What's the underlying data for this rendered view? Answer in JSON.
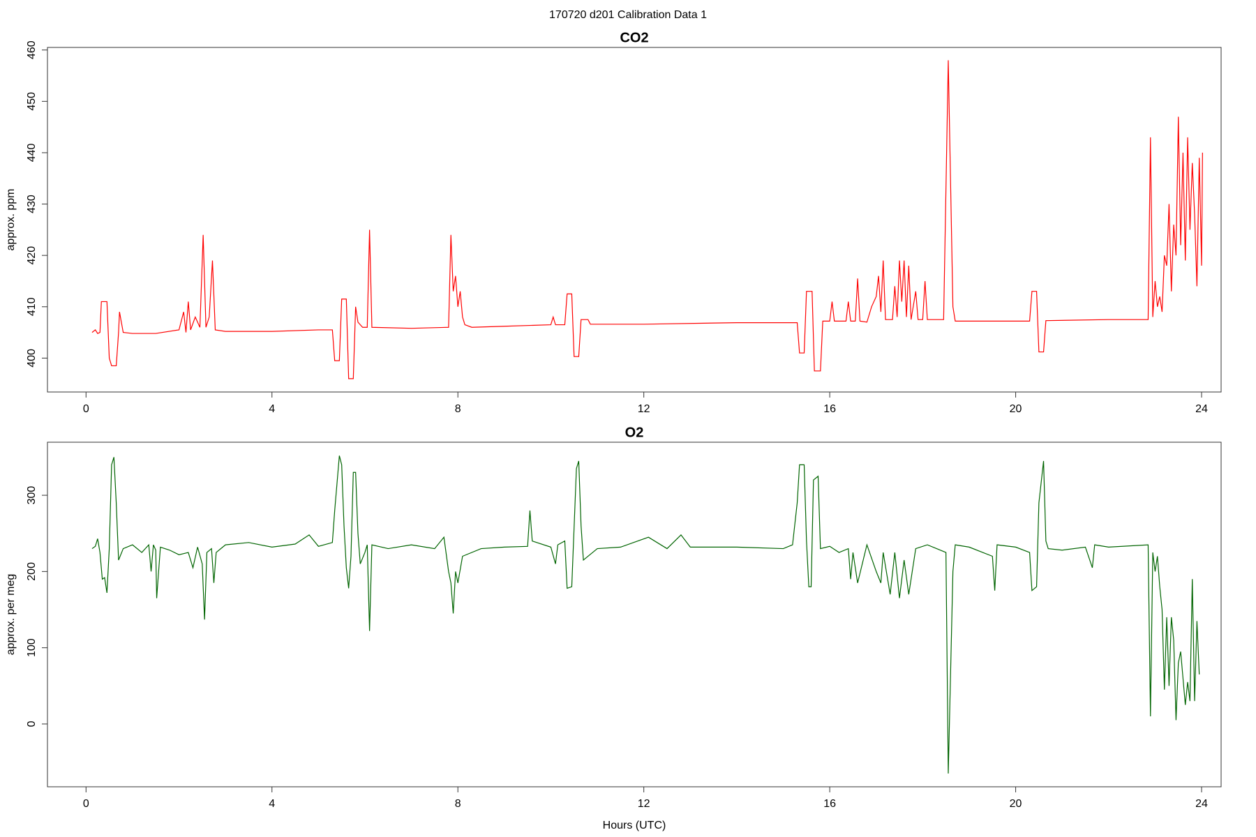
{
  "title": "170720   d201   Calibration Data 1",
  "chart_data": [
    {
      "type": "line",
      "title": "CO2",
      "ylabel": "approx. ppm",
      "color": "#ff0000",
      "xlim": [
        -0.83,
        24.42
      ],
      "xticks": [
        0,
        4,
        8,
        12,
        16,
        20,
        24
      ],
      "ylim": [
        393.4,
        460.5
      ],
      "yticks": [
        400,
        410,
        420,
        430,
        440,
        450,
        460
      ],
      "x": [
        0.13,
        0.2,
        0.25,
        0.3,
        0.33,
        0.45,
        0.5,
        0.55,
        0.65,
        0.7,
        0.72,
        0.8,
        1.0,
        1.5,
        2.0,
        2.1,
        2.15,
        2.2,
        2.25,
        2.35,
        2.45,
        2.52,
        2.58,
        2.65,
        2.72,
        2.78,
        3,
        4,
        5,
        5.3,
        5.35,
        5.45,
        5.5,
        5.6,
        5.65,
        5.75,
        5.8,
        5.85,
        5.95,
        6.05,
        6.1,
        6.15,
        7,
        7.8,
        7.85,
        7.9,
        7.95,
        8.0,
        8.05,
        8.1,
        8.15,
        8.3,
        9,
        10,
        10.05,
        10.1,
        10.3,
        10.35,
        10.45,
        10.5,
        10.6,
        10.65,
        10.8,
        10.85,
        12,
        14,
        15.3,
        15.35,
        15.45,
        15.5,
        15.62,
        15.67,
        15.8,
        15.85,
        16,
        16.05,
        16.1,
        16.35,
        16.4,
        16.45,
        16.55,
        16.6,
        16.65,
        16.8,
        16.9,
        17.0,
        17.05,
        17.1,
        17.15,
        17.2,
        17.35,
        17.4,
        17.45,
        17.5,
        17.55,
        17.6,
        17.65,
        17.7,
        17.75,
        17.85,
        17.9,
        18.0,
        18.05,
        18.1,
        18.45,
        18.55,
        18.65,
        18.7,
        20.3,
        20.35,
        20.45,
        20.5,
        20.6,
        20.65,
        22,
        22.85,
        22.9,
        22.95,
        23.0,
        23.05,
        23.1,
        23.15,
        23.2,
        23.25,
        23.3,
        23.35,
        23.4,
        23.45,
        23.5,
        23.55,
        23.6,
        23.65,
        23.7,
        23.75,
        23.8,
        23.85,
        23.9,
        23.95,
        24.0,
        24.02
      ],
      "values": [
        405,
        405.5,
        404.8,
        405,
        411,
        411,
        400,
        398.5,
        398.5,
        405,
        409,
        405,
        404.8,
        404.8,
        405.5,
        409,
        405,
        411,
        405.5,
        408,
        406,
        424,
        406,
        408,
        419,
        405.5,
        405.2,
        405.2,
        405.5,
        405.5,
        399.5,
        399.5,
        411.5,
        411.5,
        396,
        396,
        410,
        407,
        406,
        406,
        425,
        406,
        405.8,
        406,
        424,
        413,
        416,
        410,
        413,
        408,
        406.5,
        406,
        406.2,
        406.5,
        408,
        406.5,
        406.5,
        412.5,
        412.5,
        400.3,
        400.3,
        407.5,
        407.5,
        406.6,
        406.6,
        406.9,
        406.9,
        401,
        401,
        413,
        413,
        397.5,
        397.5,
        407.2,
        407.2,
        411,
        407.2,
        407.2,
        411,
        407.2,
        407.2,
        415.5,
        407.2,
        407,
        410,
        412,
        416,
        409,
        419,
        407.5,
        407.5,
        414,
        408,
        419,
        411,
        419,
        408,
        418,
        407.5,
        413,
        407.5,
        407.5,
        415,
        407.5,
        407.5,
        458,
        410,
        407.2,
        407.2,
        413,
        413,
        401.2,
        401.2,
        407.3,
        407.5,
        407.5,
        443,
        408,
        415,
        410,
        412,
        409,
        420,
        418,
        430,
        413,
        426,
        420,
        447,
        422,
        440,
        419,
        443,
        425,
        438,
        428,
        414,
        439,
        418,
        440
      ]
    },
    {
      "type": "line",
      "title": "O2",
      "ylabel": "approx. per meg",
      "xlabel": "Hours (UTC)",
      "color": "#006400",
      "xlim": [
        -0.83,
        24.42
      ],
      "xticks": [
        0,
        4,
        8,
        12,
        16,
        20,
        24
      ],
      "ylim": [
        -82.4,
        369.6
      ],
      "yticks": [
        0,
        100,
        200,
        300
      ],
      "x": [
        0.13,
        0.2,
        0.25,
        0.3,
        0.35,
        0.4,
        0.45,
        0.5,
        0.55,
        0.6,
        0.65,
        0.7,
        0.8,
        1,
        1.2,
        1.35,
        1.4,
        1.45,
        1.5,
        1.52,
        1.6,
        1.8,
        2,
        2.2,
        2.3,
        2.4,
        2.5,
        2.55,
        2.6,
        2.7,
        2.75,
        2.8,
        3,
        3.5,
        4,
        4.5,
        4.8,
        5,
        5.3,
        5.35,
        5.45,
        5.5,
        5.55,
        5.6,
        5.65,
        5.7,
        5.75,
        5.8,
        5.85,
        5.9,
        6.0,
        6.05,
        6.1,
        6.15,
        6.5,
        7,
        7.5,
        7.7,
        7.8,
        7.85,
        7.9,
        7.95,
        8.0,
        8.1,
        8.5,
        9,
        9.5,
        9.55,
        9.6,
        10,
        10.1,
        10.15,
        10.3,
        10.35,
        10.45,
        10.55,
        10.6,
        10.65,
        10.7,
        11,
        11.5,
        12.1,
        12.5,
        12.8,
        13,
        14,
        15,
        15.2,
        15.3,
        15.35,
        15.45,
        15.5,
        15.55,
        15.6,
        15.65,
        15.75,
        15.8,
        16,
        16.2,
        16.4,
        16.45,
        16.5,
        16.6,
        16.8,
        17,
        17.1,
        17.15,
        17.3,
        17.4,
        17.5,
        17.6,
        17.7,
        17.85,
        18.1,
        18.3,
        18.5,
        18.55,
        18.65,
        18.7,
        19,
        19.5,
        19.55,
        19.6,
        20,
        20.3,
        20.35,
        20.45,
        20.5,
        20.6,
        20.65,
        20.7,
        21,
        21.5,
        21.65,
        21.7,
        22,
        22.85,
        22.9,
        22.95,
        23.0,
        23.05,
        23.1,
        23.15,
        23.2,
        23.25,
        23.3,
        23.35,
        23.4,
        23.45,
        23.5,
        23.55,
        23.6,
        23.65,
        23.7,
        23.75,
        23.8,
        23.85,
        23.9,
        23.95
      ],
      "values": [
        230,
        233,
        243,
        225,
        190,
        192,
        172,
        230,
        340,
        350,
        290,
        215,
        230,
        235,
        225,
        235,
        200,
        235,
        228,
        165,
        232,
        228,
        222,
        225,
        205,
        232,
        210,
        137,
        225,
        230,
        185,
        225,
        235,
        238,
        232,
        236,
        248,
        233,
        238,
        280,
        352,
        340,
        260,
        205,
        178,
        220,
        330,
        330,
        250,
        210,
        225,
        235,
        122,
        235,
        230,
        235,
        230,
        245,
        200,
        185,
        145,
        200,
        185,
        220,
        230,
        232,
        233,
        280,
        240,
        232,
        210,
        235,
        240,
        178,
        180,
        335,
        345,
        260,
        215,
        230,
        232,
        245,
        230,
        248,
        232,
        232,
        230,
        235,
        290,
        340,
        340,
        240,
        180,
        180,
        320,
        325,
        230,
        233,
        225,
        230,
        190,
        225,
        185,
        235,
        200,
        185,
        225,
        170,
        225,
        165,
        215,
        170,
        230,
        235,
        230,
        225,
        -65,
        200,
        235,
        232,
        220,
        175,
        235,
        232,
        225,
        175,
        180,
        290,
        345,
        240,
        230,
        228,
        232,
        205,
        235,
        232,
        235,
        10,
        225,
        200,
        220,
        180,
        150,
        45,
        140,
        50,
        140,
        110,
        5,
        80,
        95,
        60,
        25,
        55,
        30,
        190,
        30,
        135,
        65
      ]
    }
  ]
}
